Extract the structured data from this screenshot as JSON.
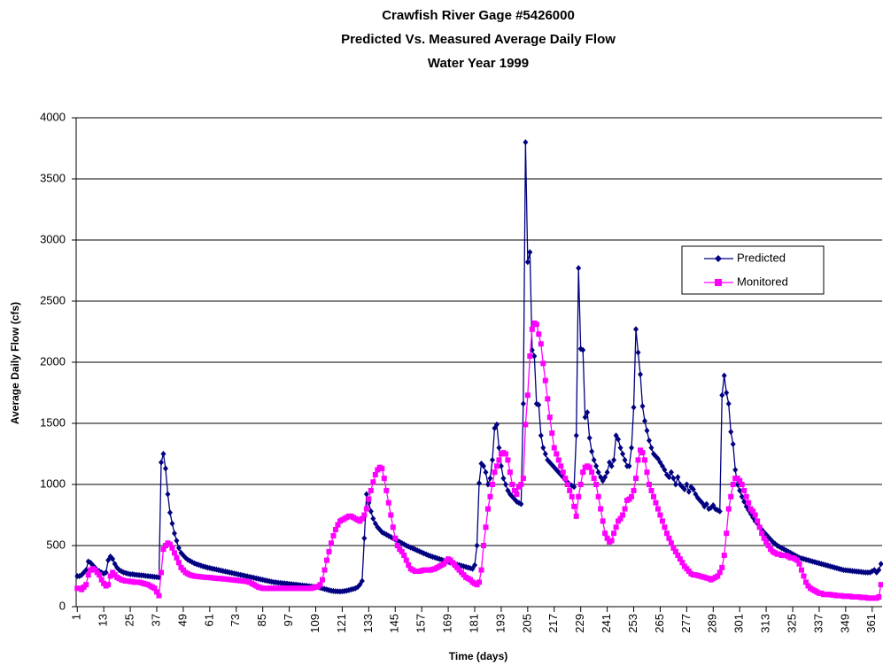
{
  "chart_data": {
    "type": "line",
    "title": [
      "Crawfish River Gage #5426000",
      "Predicted Vs. Measured Average Daily Flow",
      "Water Year 1999"
    ],
    "xlabel": "Time (days)",
    "ylabel": "Average Daily Flow (cfs)",
    "xlim": [
      0.5,
      365.5
    ],
    "ylim": [
      0,
      4000
    ],
    "yticks": [
      0,
      500,
      1000,
      1500,
      2000,
      2500,
      3000,
      3500,
      4000
    ],
    "xticks": [
      1,
      13,
      25,
      37,
      49,
      61,
      73,
      85,
      97,
      109,
      121,
      133,
      145,
      157,
      169,
      181,
      193,
      205,
      217,
      229,
      241,
      253,
      265,
      277,
      289,
      301,
      313,
      325,
      337,
      349,
      361
    ],
    "grid": true,
    "x": [
      1,
      2,
      3,
      4,
      5,
      6,
      7,
      8,
      9,
      10,
      11,
      12,
      13,
      14,
      15,
      16,
      17,
      18,
      19,
      20,
      21,
      22,
      23,
      24,
      25,
      26,
      27,
      28,
      29,
      30,
      31,
      32,
      33,
      34,
      35,
      36,
      37,
      38,
      39,
      40,
      41,
      42,
      43,
      44,
      45,
      46,
      47,
      48,
      49,
      50,
      51,
      52,
      53,
      54,
      55,
      56,
      57,
      58,
      59,
      60,
      61,
      62,
      63,
      64,
      65,
      66,
      67,
      68,
      69,
      70,
      71,
      72,
      73,
      74,
      75,
      76,
      77,
      78,
      79,
      80,
      81,
      82,
      83,
      84,
      85,
      86,
      87,
      88,
      89,
      90,
      91,
      92,
      93,
      94,
      95,
      96,
      97,
      98,
      99,
      100,
      101,
      102,
      103,
      104,
      105,
      106,
      107,
      108,
      109,
      110,
      111,
      112,
      113,
      114,
      115,
      116,
      117,
      118,
      119,
      120,
      121,
      122,
      123,
      124,
      125,
      126,
      127,
      128,
      129,
      130,
      131,
      132,
      133,
      134,
      135,
      136,
      137,
      138,
      139,
      140,
      141,
      142,
      143,
      144,
      145,
      146,
      147,
      148,
      149,
      150,
      151,
      152,
      153,
      154,
      155,
      156,
      157,
      158,
      159,
      160,
      161,
      162,
      163,
      164,
      165,
      166,
      167,
      168,
      169,
      170,
      171,
      172,
      173,
      174,
      175,
      176,
      177,
      178,
      179,
      180,
      181,
      182,
      183,
      184,
      185,
      186,
      187,
      188,
      189,
      190,
      191,
      192,
      193,
      194,
      195,
      196,
      197,
      198,
      199,
      200,
      201,
      202,
      203,
      204,
      205,
      206,
      207,
      208,
      209,
      210,
      211,
      212,
      213,
      214,
      215,
      216,
      217,
      218,
      219,
      220,
      221,
      222,
      223,
      224,
      225,
      226,
      227,
      228,
      229,
      230,
      231,
      232,
      233,
      234,
      235,
      236,
      237,
      238,
      239,
      240,
      241,
      242,
      243,
      244,
      245,
      246,
      247,
      248,
      249,
      250,
      251,
      252,
      253,
      254,
      255,
      256,
      257,
      258,
      259,
      260,
      261,
      262,
      263,
      264,
      265,
      266,
      267,
      268,
      269,
      270,
      271,
      272,
      273,
      274,
      275,
      276,
      277,
      278,
      279,
      280,
      281,
      282,
      283,
      284,
      285,
      286,
      287,
      288,
      289,
      290,
      291,
      292,
      293,
      294,
      295,
      296,
      297,
      298,
      299,
      300,
      301,
      302,
      303,
      304,
      305,
      306,
      307,
      308,
      309,
      310,
      311,
      312,
      313,
      314,
      315,
      316,
      317,
      318,
      319,
      320,
      321,
      322,
      323,
      324,
      325,
      326,
      327,
      328,
      329,
      330,
      331,
      332,
      333,
      334,
      335,
      336,
      337,
      338,
      339,
      340,
      341,
      342,
      343,
      344,
      345,
      346,
      347,
      348,
      349,
      350,
      351,
      352,
      353,
      354,
      355,
      356,
      357,
      358,
      359,
      360,
      361,
      362,
      363,
      364,
      365
    ],
    "series": [
      {
        "name": "Predicted",
        "color": "#000080",
        "marker": "diamond",
        "values": [
          250,
          250,
          260,
          280,
          300,
          370,
          360,
          340,
          320,
          300,
          290,
          280,
          270,
          280,
          380,
          410,
          390,
          350,
          320,
          300,
          290,
          280,
          275,
          270,
          265,
          265,
          262,
          260,
          258,
          256,
          255,
          252,
          250,
          248,
          246,
          244,
          242,
          240,
          1180,
          1250,
          1130,
          920,
          770,
          680,
          600,
          540,
          480,
          440,
          420,
          400,
          385,
          375,
          365,
          355,
          348,
          342,
          336,
          330,
          325,
          320,
          316,
          312,
          308,
          304,
          300,
          296,
          292,
          288,
          284,
          280,
          276,
          272,
          268,
          264,
          260,
          256,
          252,
          248,
          244,
          240,
          236,
          232,
          228,
          224,
          220,
          216,
          212,
          208,
          204,
          200,
          198,
          196,
          194,
          192,
          190,
          188,
          186,
          184,
          182,
          180,
          178,
          176,
          174,
          172,
          170,
          168,
          166,
          164,
          162,
          160,
          155,
          150,
          145,
          140,
          135,
          130,
          128,
          126,
          125,
          124,
          125,
          128,
          130,
          135,
          140,
          145,
          150,
          160,
          180,
          210,
          560,
          920,
          850,
          780,
          720,
          680,
          650,
          630,
          610,
          600,
          590,
          580,
          570,
          560,
          550,
          540,
          530,
          520,
          510,
          500,
          492,
          484,
          476,
          468,
          460,
          452,
          444,
          436,
          428,
          420,
          414,
          408,
          402,
          396,
          390,
          384,
          378,
          372,
          366,
          360,
          355,
          350,
          345,
          340,
          335,
          330,
          325,
          320,
          315,
          310,
          340,
          500,
          1010,
          1170,
          1150,
          1100,
          1000,
          1050,
          1200,
          1460,
          1490,
          1300,
          1150,
          1050,
          1000,
          950,
          920,
          900,
          880,
          860,
          850,
          840,
          1660,
          3800,
          2820,
          2900,
          2100,
          2050,
          1660,
          1650,
          1400,
          1300,
          1250,
          1200,
          1180,
          1160,
          1140,
          1120,
          1100,
          1080,
          1060,
          1040,
          1020,
          1000,
          990,
          980,
          1400,
          2770,
          2110,
          2100,
          1550,
          1590,
          1380,
          1270,
          1200,
          1150,
          1100,
          1060,
          1030,
          1060,
          1100,
          1180,
          1150,
          1200,
          1400,
          1370,
          1300,
          1250,
          1200,
          1150,
          1150,
          1300,
          1630,
          2270,
          2080,
          1900,
          1640,
          1520,
          1440,
          1360,
          1300,
          1250,
          1230,
          1210,
          1180,
          1150,
          1120,
          1080,
          1060,
          1100,
          1050,
          1000,
          1060,
          1000,
          980,
          960,
          1000,
          940,
          980,
          960,
          920,
          890,
          870,
          850,
          820,
          840,
          800,
          810,
          830,
          800,
          790,
          780,
          1730,
          1890,
          1750,
          1660,
          1430,
          1330,
          1120,
          1000,
          950,
          900,
          860,
          820,
          790,
          760,
          730,
          700,
          680,
          650,
          630,
          610,
          590,
          570,
          550,
          530,
          515,
          500,
          490,
          480,
          470,
          460,
          450,
          440,
          430,
          420,
          410,
          400,
          395,
          390,
          385,
          380,
          375,
          370,
          365,
          360,
          355,
          350,
          345,
          340,
          335,
          330,
          325,
          320,
          315,
          310,
          305,
          300,
          298,
          296,
          294,
          292,
          290,
          288,
          286,
          284,
          282,
          280,
          280,
          280,
          290,
          300,
          280,
          300,
          350
        ]
      },
      {
        "name": "Monitored",
        "color": "#ff00ff",
        "marker": "square",
        "values": [
          150,
          150,
          140,
          160,
          180,
          260,
          300,
          310,
          300,
          280,
          260,
          220,
          190,
          170,
          180,
          250,
          280,
          260,
          240,
          230,
          220,
          215,
          210,
          210,
          205,
          205,
          200,
          200,
          200,
          195,
          190,
          185,
          180,
          170,
          160,
          150,
          120,
          90,
          280,
          470,
          500,
          520,
          510,
          480,
          440,
          400,
          360,
          320,
          300,
          280,
          270,
          260,
          255,
          250,
          248,
          246,
          244,
          242,
          240,
          240,
          238,
          236,
          234,
          232,
          230,
          230,
          228,
          226,
          224,
          222,
          220,
          218,
          216,
          214,
          212,
          210,
          208,
          205,
          200,
          190,
          180,
          170,
          160,
          155,
          150,
          150,
          150,
          150,
          150,
          150,
          150,
          150,
          150,
          150,
          150,
          150,
          150,
          150,
          150,
          150,
          150,
          150,
          150,
          150,
          150,
          150,
          150,
          155,
          160,
          165,
          180,
          220,
          300,
          380,
          450,
          520,
          580,
          630,
          670,
          700,
          710,
          720,
          730,
          740,
          740,
          730,
          720,
          710,
          700,
          720,
          750,
          800,
          880,
          950,
          1020,
          1080,
          1120,
          1140,
          1130,
          1050,
          950,
          850,
          750,
          650,
          560,
          500,
          470,
          450,
          420,
          380,
          340,
          310,
          300,
          290,
          290,
          290,
          295,
          300,
          300,
          300,
          300,
          305,
          310,
          320,
          330,
          340,
          350,
          370,
          390,
          380,
          360,
          340,
          320,
          300,
          280,
          260,
          240,
          230,
          220,
          200,
          190,
          180,
          200,
          300,
          500,
          650,
          800,
          900,
          1000,
          1100,
          1150,
          1200,
          1250,
          1260,
          1250,
          1200,
          1100,
          1000,
          950,
          920,
          980,
          1000,
          1050,
          1490,
          1730,
          2050,
          2270,
          2320,
          2310,
          2230,
          2150,
          1990,
          1850,
          1700,
          1550,
          1420,
          1300,
          1250,
          1200,
          1150,
          1100,
          1050,
          1000,
          950,
          900,
          820,
          740,
          900,
          1000,
          1100,
          1140,
          1150,
          1140,
          1100,
          1050,
          1000,
          900,
          800,
          700,
          600,
          560,
          530,
          540,
          600,
          650,
          700,
          720,
          750,
          800,
          870,
          880,
          900,
          950,
          1050,
          1200,
          1280,
          1260,
          1200,
          1100,
          1000,
          950,
          900,
          850,
          800,
          750,
          700,
          650,
          600,
          560,
          520,
          480,
          450,
          420,
          390,
          360,
          330,
          310,
          290,
          270,
          260,
          260,
          255,
          250,
          245,
          240,
          235,
          230,
          220,
          230,
          240,
          250,
          280,
          320,
          420,
          600,
          800,
          900,
          1000,
          1050,
          1050,
          1030,
          1000,
          950,
          900,
          850,
          800,
          780,
          750,
          700,
          650,
          600,
          560,
          530,
          500,
          470,
          450,
          440,
          430,
          430,
          420,
          420,
          420,
          410,
          400,
          400,
          390,
          380,
          350,
          300,
          250,
          200,
          170,
          150,
          140,
          130,
          120,
          110,
          110,
          100,
          100,
          100,
          100,
          95,
          95,
          90,
          90,
          90,
          85,
          85,
          85,
          85,
          80,
          80,
          80,
          80,
          75,
          75,
          75,
          70,
          70,
          70,
          70,
          70,
          80,
          180
        ]
      }
    ]
  }
}
